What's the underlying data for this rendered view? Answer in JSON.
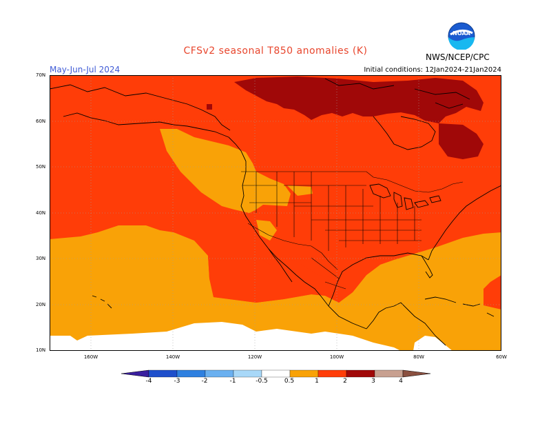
{
  "title": "CFSv2 seasonal T850 anomalies (K)",
  "season": "May-Jun-Jul 2024",
  "initial_conditions": "Initial conditions: 12Jan2024-21Jan2024",
  "agency": "NWS/NCEP/CPC",
  "logo_text": "NOAA",
  "lat_labels": [
    "70N",
    "60N",
    "50N",
    "40N",
    "30N",
    "20N",
    "10N"
  ],
  "lon_labels": [
    "160W",
    "140W",
    "120W",
    "100W",
    "80W",
    "60W"
  ],
  "colorbar": {
    "labels": [
      "-4",
      "-3",
      "-2",
      "-1",
      "-0.5",
      "0.5",
      "1",
      "2",
      "3",
      "4"
    ],
    "colors": [
      "#3a1f9f",
      "#1e4fcb",
      "#2e80e0",
      "#6ab0f0",
      "#a8d8f8",
      "#ffffff",
      "#f9a207",
      "#ff3d08",
      "#a00808",
      "#c8a090",
      "#8a5040"
    ]
  },
  "map_colors": {
    "anom_0_5_1": "#f9a207",
    "anom_1_2": "#ff3d08",
    "anom_2_3": "#a00808",
    "near_zero": "#ffffff"
  }
}
